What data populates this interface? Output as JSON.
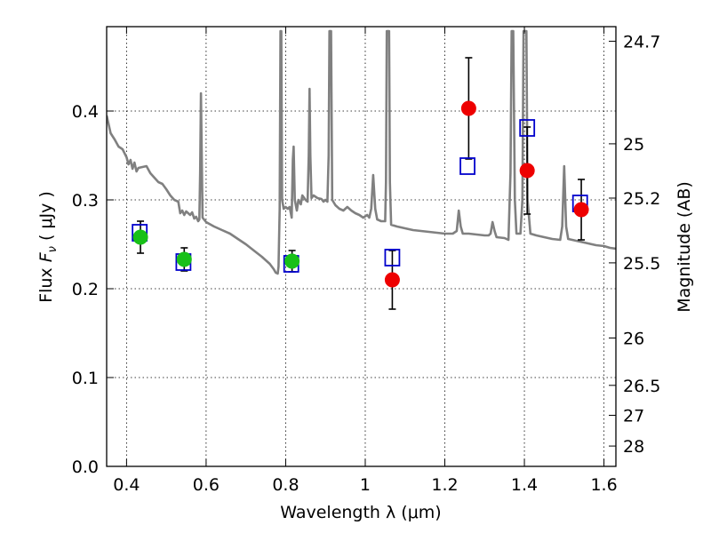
{
  "chart_data": {
    "type": "scatter",
    "title": "",
    "xlabel": "Wavelength  λ (μm)",
    "ylabel": "Flux  F_ν  ( μJy )",
    "ylabel_parts": {
      "prefix": "Flux  ",
      "symbol": "F",
      "sub": "ν",
      "unit": "  ( μJy )"
    },
    "y2label": "Magnitude (AB)",
    "xlim": [
      0.35,
      1.63
    ],
    "ylim": [
      0.0,
      0.495
    ],
    "grid": true,
    "x_ticks": [
      {
        "value": 0.4,
        "label": "0.4"
      },
      {
        "value": 0.6,
        "label": "0.6"
      },
      {
        "value": 0.8,
        "label": "0.8"
      },
      {
        "value": 1.0,
        "label": "1"
      },
      {
        "value": 1.2,
        "label": "1.2"
      },
      {
        "value": 1.4,
        "label": "1.4"
      },
      {
        "value": 1.6,
        "label": "1.6"
      }
    ],
    "y_ticks": [
      {
        "value": 0.0,
        "label": "0.0"
      },
      {
        "value": 0.1,
        "label": "0.1"
      },
      {
        "value": 0.2,
        "label": "0.2"
      },
      {
        "value": 0.3,
        "label": "0.3"
      },
      {
        "value": 0.4,
        "label": "0.4"
      }
    ],
    "y2_ticks": [
      {
        "flux": 0.4786,
        "label": "24.7"
      },
      {
        "flux": 0.3631,
        "label": "25"
      },
      {
        "flux": 0.302,
        "label": "25.2"
      },
      {
        "flux": 0.2291,
        "label": "25.5"
      },
      {
        "flux": 0.1445,
        "label": "26"
      },
      {
        "flux": 0.0912,
        "label": "26.5"
      },
      {
        "flux": 0.0575,
        "label": "27"
      },
      {
        "flux": 0.0229,
        "label": "28"
      }
    ],
    "series": [
      {
        "name": "model spectrum",
        "kind": "line",
        "color": "#808080",
        "points": [
          [
            0.35,
            0.395
          ],
          [
            0.36,
            0.375
          ],
          [
            0.37,
            0.368
          ],
          [
            0.38,
            0.36
          ],
          [
            0.39,
            0.357
          ],
          [
            0.4,
            0.348
          ],
          [
            0.405,
            0.34
          ],
          [
            0.41,
            0.345
          ],
          [
            0.415,
            0.335
          ],
          [
            0.42,
            0.342
          ],
          [
            0.425,
            0.332
          ],
          [
            0.43,
            0.336
          ],
          [
            0.45,
            0.338
          ],
          [
            0.46,
            0.33
          ],
          [
            0.47,
            0.325
          ],
          [
            0.48,
            0.32
          ],
          [
            0.49,
            0.318
          ],
          [
            0.5,
            0.312
          ],
          [
            0.51,
            0.305
          ],
          [
            0.52,
            0.3
          ],
          [
            0.53,
            0.298
          ],
          [
            0.535,
            0.285
          ],
          [
            0.54,
            0.288
          ],
          [
            0.545,
            0.283
          ],
          [
            0.55,
            0.287
          ],
          [
            0.56,
            0.283
          ],
          [
            0.565,
            0.286
          ],
          [
            0.57,
            0.279
          ],
          [
            0.575,
            0.281
          ],
          [
            0.58,
            0.276
          ],
          [
            0.583,
            0.278
          ],
          [
            0.585,
            0.33
          ],
          [
            0.587,
            0.42
          ],
          [
            0.589,
            0.35
          ],
          [
            0.591,
            0.28
          ],
          [
            0.6,
            0.275
          ],
          [
            0.62,
            0.27
          ],
          [
            0.64,
            0.266
          ],
          [
            0.66,
            0.262
          ],
          [
            0.68,
            0.256
          ],
          [
            0.7,
            0.25
          ],
          [
            0.72,
            0.243
          ],
          [
            0.74,
            0.236
          ],
          [
            0.76,
            0.228
          ],
          [
            0.77,
            0.222
          ],
          [
            0.775,
            0.218
          ],
          [
            0.78,
            0.217
          ],
          [
            0.782,
            0.225
          ],
          [
            0.785,
            0.29
          ],
          [
            0.787,
            0.49
          ],
          [
            0.789,
            0.49
          ],
          [
            0.791,
            0.3
          ],
          [
            0.795,
            0.29
          ],
          [
            0.8,
            0.292
          ],
          [
            0.805,
            0.29
          ],
          [
            0.81,
            0.292
          ],
          [
            0.815,
            0.28
          ],
          [
            0.818,
            0.345
          ],
          [
            0.82,
            0.36
          ],
          [
            0.823,
            0.3
          ],
          [
            0.828,
            0.288
          ],
          [
            0.832,
            0.3
          ],
          [
            0.838,
            0.295
          ],
          [
            0.842,
            0.305
          ],
          [
            0.85,
            0.3
          ],
          [
            0.855,
            0.298
          ],
          [
            0.858,
            0.35
          ],
          [
            0.86,
            0.425
          ],
          [
            0.862,
            0.35
          ],
          [
            0.865,
            0.302
          ],
          [
            0.87,
            0.305
          ],
          [
            0.88,
            0.302
          ],
          [
            0.89,
            0.301
          ],
          [
            0.895,
            0.298
          ],
          [
            0.9,
            0.3
          ],
          [
            0.905,
            0.298
          ],
          [
            0.908,
            0.35
          ],
          [
            0.91,
            0.49
          ],
          [
            0.914,
            0.49
          ],
          [
            0.917,
            0.3
          ],
          [
            0.925,
            0.294
          ],
          [
            0.935,
            0.29
          ],
          [
            0.945,
            0.288
          ],
          [
            0.955,
            0.292
          ],
          [
            0.965,
            0.288
          ],
          [
            0.975,
            0.285
          ],
          [
            0.985,
            0.283
          ],
          [
            0.995,
            0.28
          ],
          [
            1.005,
            0.283
          ],
          [
            1.01,
            0.28
          ],
          [
            1.015,
            0.29
          ],
          [
            1.02,
            0.328
          ],
          [
            1.025,
            0.29
          ],
          [
            1.03,
            0.278
          ],
          [
            1.04,
            0.276
          ],
          [
            1.05,
            0.276
          ],
          [
            1.052,
            0.32
          ],
          [
            1.054,
            0.49
          ],
          [
            1.06,
            0.49
          ],
          [
            1.062,
            0.32
          ],
          [
            1.065,
            0.272
          ],
          [
            1.08,
            0.27
          ],
          [
            1.1,
            0.268
          ],
          [
            1.12,
            0.266
          ],
          [
            1.14,
            0.265
          ],
          [
            1.16,
            0.264
          ],
          [
            1.18,
            0.263
          ],
          [
            1.2,
            0.262
          ],
          [
            1.22,
            0.262
          ],
          [
            1.23,
            0.265
          ],
          [
            1.235,
            0.288
          ],
          [
            1.24,
            0.27
          ],
          [
            1.245,
            0.262
          ],
          [
            1.26,
            0.262
          ],
          [
            1.28,
            0.261
          ],
          [
            1.3,
            0.26
          ],
          [
            1.31,
            0.26
          ],
          [
            1.315,
            0.262
          ],
          [
            1.32,
            0.275
          ],
          [
            1.325,
            0.265
          ],
          [
            1.33,
            0.258
          ],
          [
            1.35,
            0.257
          ],
          [
            1.36,
            0.255
          ],
          [
            1.365,
            0.33
          ],
          [
            1.368,
            0.49
          ],
          [
            1.372,
            0.49
          ],
          [
            1.376,
            0.3
          ],
          [
            1.38,
            0.262
          ],
          [
            1.39,
            0.262
          ],
          [
            1.395,
            0.3
          ],
          [
            1.398,
            0.49
          ],
          [
            1.405,
            0.49
          ],
          [
            1.408,
            0.3
          ],
          [
            1.415,
            0.262
          ],
          [
            1.43,
            0.26
          ],
          [
            1.45,
            0.258
          ],
          [
            1.47,
            0.256
          ],
          [
            1.49,
            0.255
          ],
          [
            1.495,
            0.27
          ],
          [
            1.5,
            0.338
          ],
          [
            1.505,
            0.27
          ],
          [
            1.51,
            0.256
          ],
          [
            1.53,
            0.254
          ],
          [
            1.55,
            0.252
          ],
          [
            1.56,
            0.251
          ],
          [
            1.57,
            0.25
          ],
          [
            1.58,
            0.249
          ],
          [
            1.6,
            0.248
          ],
          [
            1.615,
            0.246
          ],
          [
            1.63,
            0.245
          ]
        ]
      },
      {
        "name": "model photometry",
        "kind": "open-square",
        "color": "#0000cc",
        "points": [
          [
            0.433,
            0.263
          ],
          [
            0.543,
            0.23
          ],
          [
            0.814,
            0.228
          ],
          [
            1.068,
            0.235
          ],
          [
            1.257,
            0.338
          ],
          [
            1.407,
            0.381
          ],
          [
            1.54,
            0.296
          ]
        ]
      },
      {
        "name": "observed flux (optical)",
        "kind": "filled-circle",
        "color": "#18c018",
        "points": [
          {
            "x": 0.435,
            "y": 0.258,
            "err": 0.018
          },
          {
            "x": 0.545,
            "y": 0.233,
            "err": 0.013
          },
          {
            "x": 0.816,
            "y": 0.231,
            "err": 0.012
          }
        ]
      },
      {
        "name": "observed flux (near-IR)",
        "kind": "filled-circle",
        "color": "#ee0000",
        "points": [
          {
            "x": 1.068,
            "y": 0.21,
            "err": 0.033
          },
          {
            "x": 1.26,
            "y": 0.403,
            "err": 0.057
          },
          {
            "x": 1.407,
            "y": 0.333,
            "err": 0.049
          },
          {
            "x": 1.543,
            "y": 0.289,
            "err": 0.034
          }
        ]
      }
    ]
  }
}
